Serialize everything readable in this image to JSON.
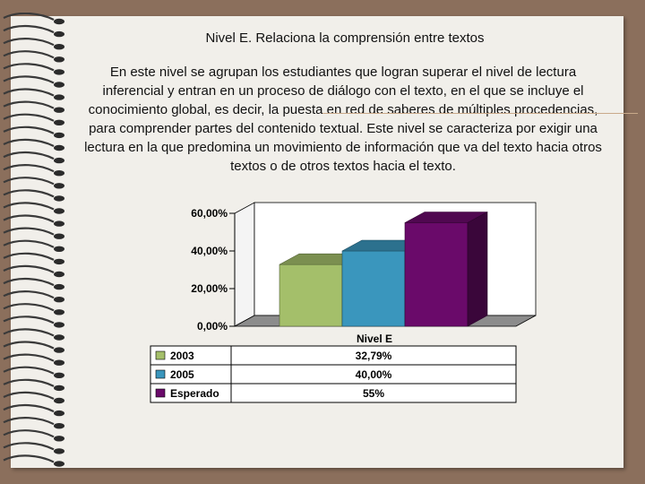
{
  "slide": {
    "title": "Nivel E. Relaciona la comprensión entre textos",
    "body": "En este nivel se agrupan los estudiantes que logran superar el nivel de lectura inferencial y entran en un proceso de diálogo con el texto, en el que se incluye el conocimiento global, es decir, la puesta en red de saberes de múltiples procedencias, para comprender partes del contenido textual. Este nivel se caracteriza por exigir una lectura en la que predomina un movimiento de información que va del texto hacia otros textos o de otros textos hacia el texto."
  },
  "chart_data": {
    "type": "bar",
    "categories": [
      "Nivel E"
    ],
    "series": [
      {
        "name": "2003",
        "values": [
          32.79
        ],
        "label": "32,79%",
        "color": "#a4bf6a"
      },
      {
        "name": "2005",
        "values": [
          40.0
        ],
        "label": "40,00%",
        "color": "#3a96bd"
      },
      {
        "name": "Esperado",
        "values": [
          55
        ],
        "label": "55%",
        "color": "#6a0a6a"
      }
    ],
    "yticks": [
      0,
      20,
      40,
      60
    ],
    "ytick_labels": [
      "0,00%",
      "20,00%",
      "40,00%",
      "60,00%"
    ],
    "ylim": [
      0,
      60
    ],
    "three_d": true,
    "grid": false,
    "legend": "data-table"
  }
}
